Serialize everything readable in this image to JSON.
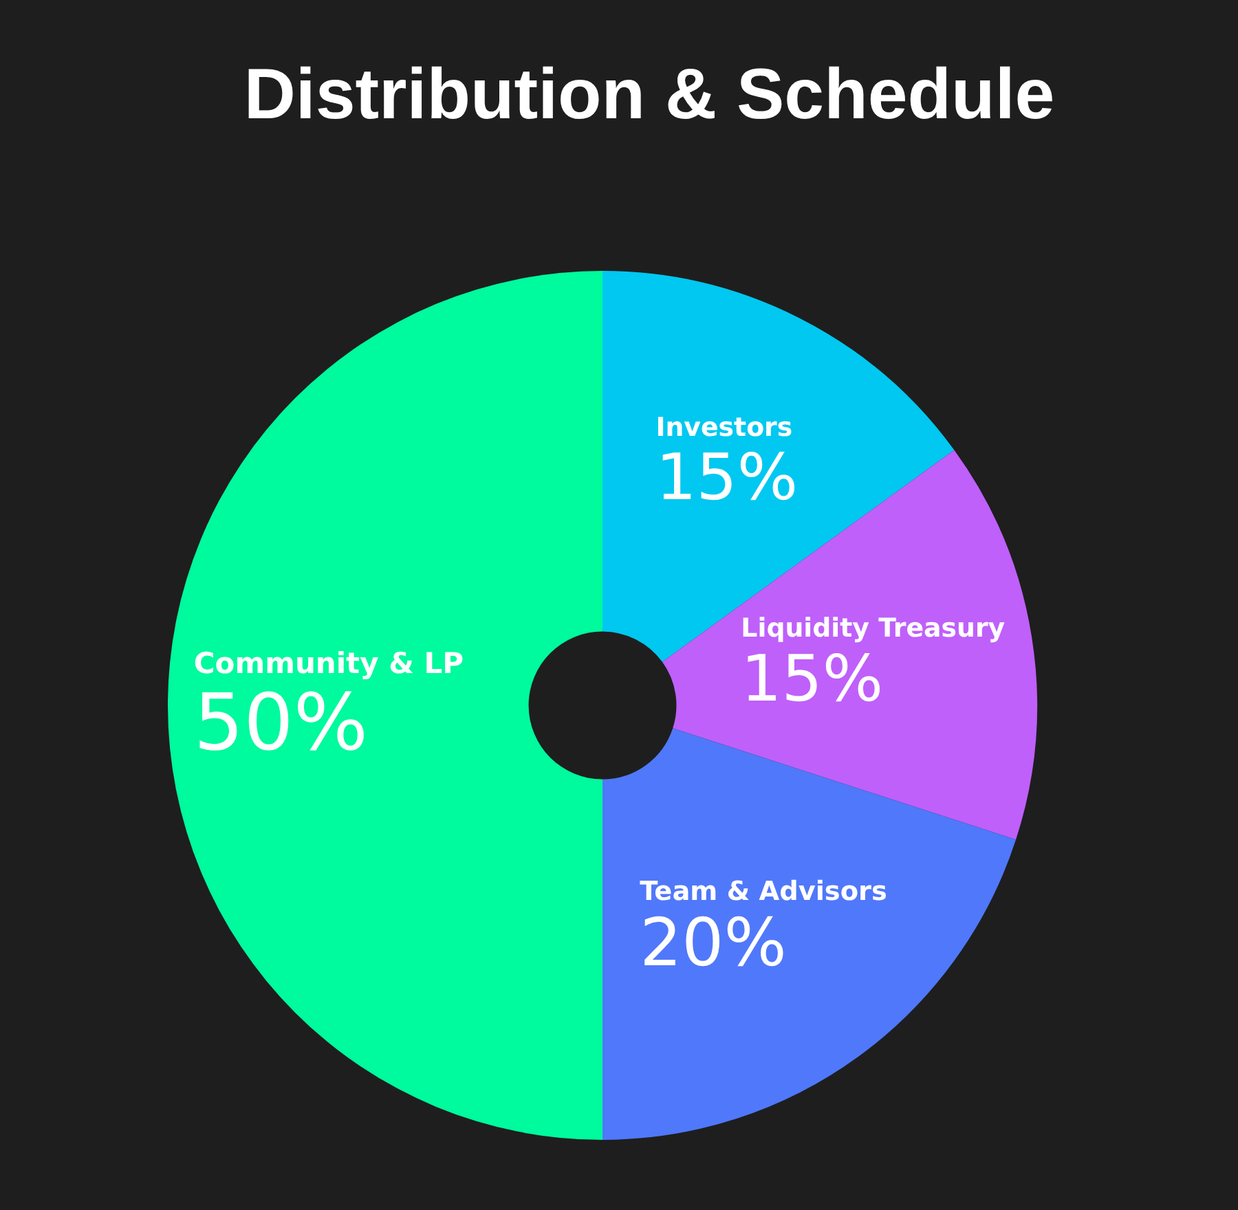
{
  "chart_data": {
    "type": "donut",
    "title": "Distribution & Schedule",
    "categories": [
      "Investors",
      "Liquidity Treasury",
      "Team & Advisors",
      "Community & LP"
    ],
    "values": [
      15,
      15,
      20,
      50
    ],
    "colors": [
      "#00c8f0",
      "#bf60fa",
      "#5078fa",
      "#00fa9e"
    ],
    "value_labels": [
      "15%",
      "15%",
      "20%",
      "50%"
    ]
  }
}
